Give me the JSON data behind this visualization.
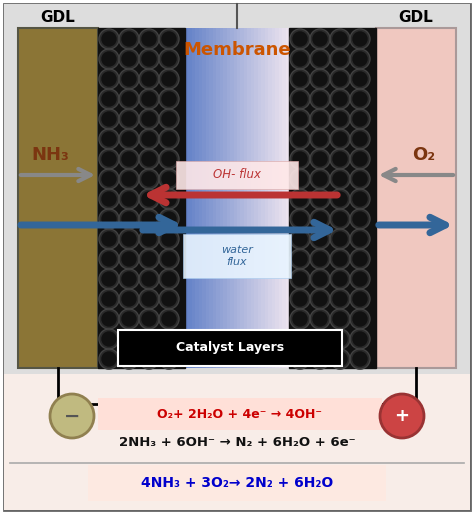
{
  "fig_width": 4.74,
  "fig_height": 5.14,
  "dpi": 100,
  "gdl_left_color": "#8B7536",
  "gdl_right_color": "#F0C8C0",
  "membrane_gradient": [
    "#7090D0",
    "#B8D0F0",
    "#E0EEFF",
    "#C8DAFF",
    "#9BB8E8"
  ],
  "catalyst_dark": "#111111",
  "catalyst_mid": "#2a2a2a",
  "gdl_label": "GDL",
  "membrane_label": "Membrane",
  "nh3_label": "NH₃",
  "o2_label": "O₂",
  "oh_flux_label": "OH- flux",
  "water_flux_label": "water\nflux",
  "catalyst_label": "Catalyst Layers",
  "eq1": "O₂+ 2H₂O + 4e⁻ → 4OH⁻",
  "eq2": "2NH₃ + 6OH⁻ → N₂ + 6H₂O + 6e⁻",
  "eq3": "4NH₃ + 3O₂→ 2N₂ + 6H₂O",
  "eq1_color": "#CC0000",
  "eq2_color": "#111111",
  "eq3_color": "#0000CC",
  "oh_arrow_color": "#BB3333",
  "water_arrow_color": "#336699",
  "gray_arrow_color": "#888888",
  "bottom_eq_bg": "#FAE8E0",
  "eq1_box_color": "#FFE0D8",
  "eq3_box_color": "#FFE8E0"
}
